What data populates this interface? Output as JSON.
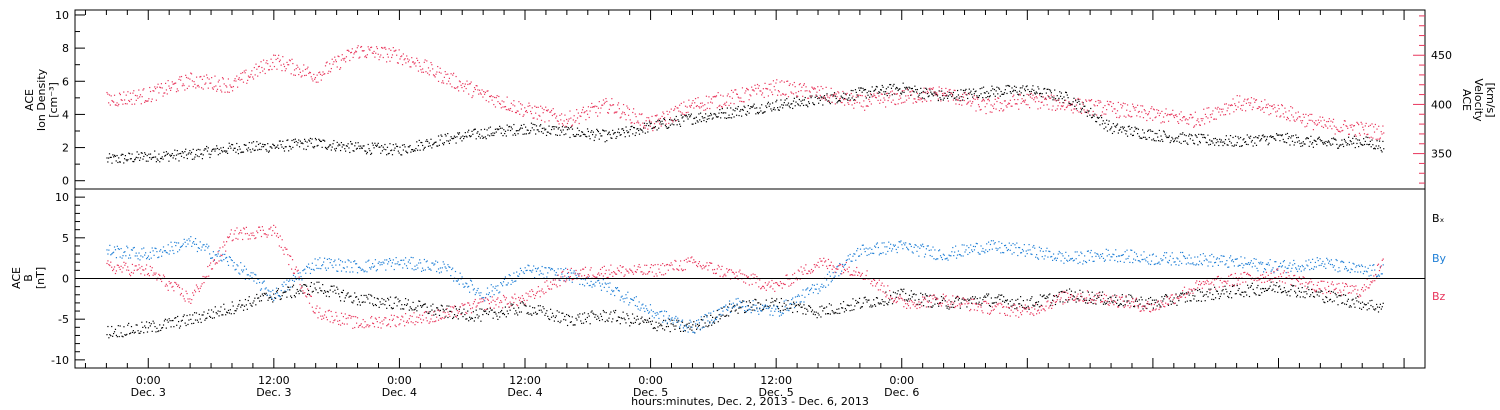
{
  "chart_data": [
    {
      "type": "scatter",
      "panel": "top",
      "left_axis": {
        "line1": "ACE",
        "line2": "Ion Density",
        "unit": "[cm⁻³]",
        "ylim": [
          -0.5,
          10.3
        ],
        "ticks": [
          "0",
          "2",
          "4",
          "6",
          "8",
          "10"
        ]
      },
      "right_axis": {
        "line1": "ACE",
        "line2": "Velocity",
        "unit": "[km/s]",
        "ylim": [
          314,
          496
        ],
        "ticks": [
          "350",
          "400",
          "450"
        ]
      },
      "series": [
        {
          "axis": "left",
          "color": "#000000",
          "x": [
            -4,
            0,
            4,
            8,
            12,
            16,
            20,
            24,
            28,
            32,
            36,
            40,
            44,
            48,
            52,
            56,
            60,
            64,
            68,
            72,
            76,
            80,
            84,
            88,
            92,
            96,
            100,
            104,
            108,
            112,
            116,
            118
          ],
          "y": [
            1.3,
            1.5,
            1.6,
            2.0,
            2.1,
            2.3,
            2.0,
            1.9,
            2.5,
            2.9,
            3.2,
            3.0,
            2.7,
            3.3,
            3.8,
            4.2,
            4.6,
            4.9,
            5.3,
            5.6,
            5.1,
            5.4,
            5.5,
            5.0,
            3.2,
            2.8,
            2.5,
            2.4,
            2.6,
            2.3,
            2.4,
            2.1
          ]
        },
        {
          "axis": "right",
          "color": "#e8365c",
          "x": [
            -4,
            0,
            4,
            8,
            12,
            16,
            20,
            24,
            28,
            32,
            36,
            40,
            44,
            48,
            52,
            56,
            60,
            64,
            68,
            72,
            76,
            80,
            84,
            88,
            92,
            96,
            100,
            104,
            108,
            112,
            116,
            118
          ],
          "y": [
            405,
            410,
            425,
            420,
            445,
            430,
            455,
            450,
            430,
            410,
            395,
            385,
            400,
            380,
            400,
            408,
            418,
            412,
            402,
            408,
            412,
            398,
            405,
            400,
            396,
            390,
            385,
            402,
            395,
            380,
            375,
            372
          ]
        }
      ]
    },
    {
      "type": "scatter",
      "panel": "bottom",
      "left_axis": {
        "line1": "ACE",
        "line2": "B",
        "unit": "[nT]",
        "ylim": [
          -11,
          11
        ],
        "ticks": [
          "-10",
          "-5",
          "0",
          "5",
          "10"
        ]
      },
      "reference_line": 0,
      "series": [
        {
          "name": "Bₓ",
          "color": "#000000",
          "x": [
            -4,
            0,
            4,
            8,
            12,
            16,
            20,
            24,
            28,
            32,
            36,
            40,
            44,
            48,
            52,
            56,
            60,
            64,
            68,
            72,
            76,
            80,
            84,
            88,
            92,
            96,
            100,
            104,
            108,
            112,
            116,
            118
          ],
          "y": [
            -6.5,
            -6.0,
            -5.0,
            -3.5,
            -2.0,
            -1.0,
            -2.5,
            -3.0,
            -4.0,
            -4.5,
            -3.5,
            -5.0,
            -4.5,
            -5.5,
            -6.0,
            -3.5,
            -3.0,
            -4.0,
            -3.0,
            -2.0,
            -3.0,
            -2.5,
            -3.0,
            -2.0,
            -2.5,
            -3.0,
            -2.0,
            -1.5,
            -1.0,
            -2.0,
            -3.0,
            -3.5
          ]
        },
        {
          "name": "By",
          "color": "#1f7fd6",
          "x": [
            -4,
            0,
            4,
            8,
            12,
            16,
            20,
            24,
            28,
            32,
            36,
            40,
            44,
            48,
            52,
            56,
            60,
            64,
            68,
            72,
            76,
            80,
            84,
            88,
            92,
            96,
            100,
            104,
            108,
            112,
            116,
            118
          ],
          "y": [
            3.5,
            3.0,
            4.5,
            2.0,
            -2.0,
            2.0,
            1.5,
            2.0,
            1.5,
            -2.0,
            1.0,
            0.5,
            -1.0,
            -4.0,
            -6.0,
            -3.0,
            -4.0,
            -1.0,
            3.5,
            4.0,
            3.0,
            4.0,
            3.5,
            2.5,
            3.0,
            2.5,
            2.5,
            2.0,
            1.5,
            2.0,
            1.0,
            1.0
          ]
        },
        {
          "name": "Bz",
          "color": "#e8365c",
          "x": [
            -4,
            0,
            4,
            8,
            12,
            16,
            20,
            24,
            28,
            32,
            36,
            40,
            44,
            48,
            52,
            56,
            60,
            64,
            68,
            72,
            76,
            80,
            84,
            88,
            92,
            96,
            100,
            104,
            108,
            112,
            116,
            118
          ],
          "y": [
            1.5,
            1.0,
            -2.5,
            5.5,
            6.0,
            -4.0,
            -5.5,
            -5.0,
            -4.5,
            -3.0,
            -2.5,
            0.5,
            1.0,
            1.0,
            2.0,
            0.5,
            -1.0,
            2.0,
            1.0,
            -3.0,
            -2.5,
            -3.5,
            -4.0,
            -2.0,
            -2.5,
            -3.5,
            -1.0,
            0.0,
            0.5,
            -1.0,
            -1.5,
            2.0
          ]
        }
      ]
    }
  ],
  "x_axis": {
    "xlim": [
      -7,
      122
    ],
    "ticks": [
      {
        "x": 0,
        "time": "0:00",
        "date": "Dec. 3"
      },
      {
        "x": 12,
        "time": "12:00",
        "date": "Dec. 3"
      },
      {
        "x": 24,
        "time": "0:00",
        "date": "Dec. 4"
      },
      {
        "x": 36,
        "time": "12:00",
        "date": "Dec. 4"
      },
      {
        "x": 48,
        "time": "0:00",
        "date": "Dec. 5"
      },
      {
        "x": 60,
        "time": "12:00",
        "date": "Dec. 5"
      },
      {
        "x": 72,
        "time": "0:00",
        "date": "Dec. 6"
      }
    ],
    "title": "hours:minutes, Dec.  2, 2013 - Dec.  6, 2013"
  },
  "legend": [
    "Bₓ",
    "By",
    "Bz"
  ]
}
